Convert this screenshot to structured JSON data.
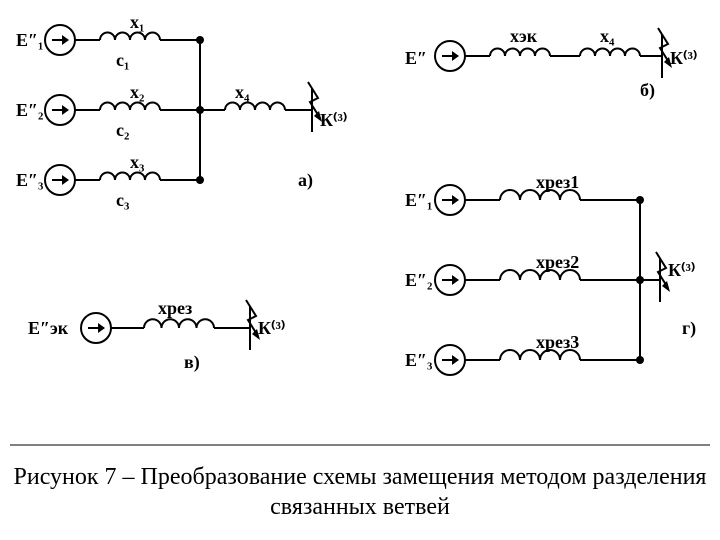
{
  "colors": {
    "stroke": "#000",
    "bg": "#fff"
  },
  "stroke_width": 2,
  "caption": "Рисунок 7 – Преобразование схемы замещения методом разделения связанных ветвей",
  "panels": {
    "a": {
      "tag": "а)",
      "sources": [
        "E″₁",
        "E″₂",
        "E″₃"
      ],
      "branch_x": [
        "x₁",
        "x₂",
        "x₃"
      ],
      "branch_c": [
        "c₁",
        "c₂",
        "c₃"
      ],
      "common": "x₄",
      "fault": "К⁽³⁾"
    },
    "b": {
      "tag": "б)",
      "source": "E″",
      "reactances": [
        "xэк",
        "x₄"
      ],
      "fault": "К⁽³⁾"
    },
    "v": {
      "tag": "в)",
      "source": "E″эк",
      "reactance": "xрез",
      "fault": "К⁽³⁾"
    },
    "g": {
      "tag": "г)",
      "sources": [
        "E″₁",
        "E″₂",
        "E″₃"
      ],
      "reactances": [
        "xрез1",
        "xрез2",
        "xрез3"
      ],
      "fault": "К⁽³⁾"
    }
  }
}
